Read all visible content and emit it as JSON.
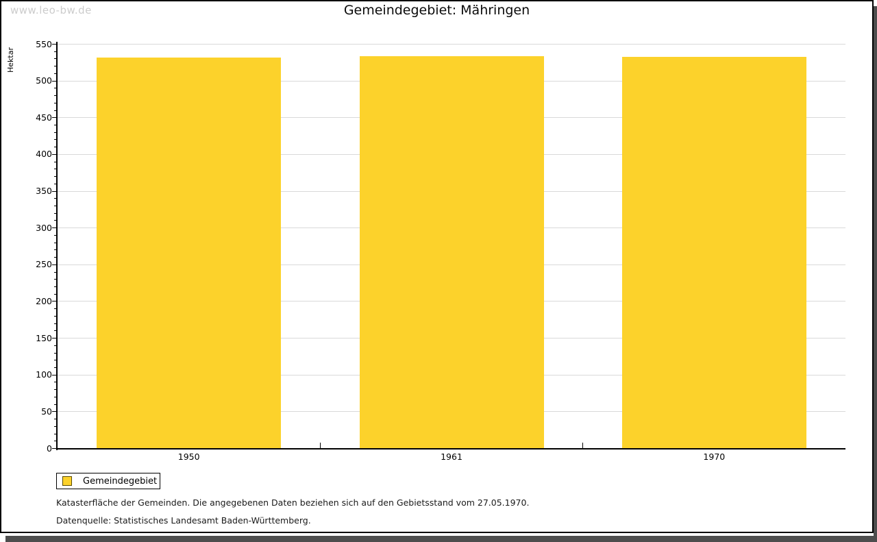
{
  "watermark": "www.leo-bw.de",
  "header": {
    "title": "Gemeindegebiet: Mähringen"
  },
  "y_axis": {
    "label": "Hektar"
  },
  "legend": {
    "label": "Gemeindegebiet",
    "swatch_color": "#FCD22B"
  },
  "footnotes": {
    "line1": "Katasterfläche der Gemeinden. Die angegebenen Daten beziehen sich auf den Gebietsstand vom 27.05.1970.",
    "line2": "Datenquelle: Statistisches Landesamt Baden-Württemberg."
  },
  "colors": {
    "bar": "#FCD22B",
    "grid": "#d9d9d9",
    "axis": "#000000",
    "shadow": "#4d4d4d",
    "watermark": "#cccccc"
  },
  "chart_data": {
    "type": "bar",
    "categories": [
      "1950",
      "1961",
      "1970"
    ],
    "series": [
      {
        "name": "Gemeindegebiet",
        "values": [
          532,
          534,
          533
        ]
      }
    ],
    "title": "Gemeindegebiet: Mähringen",
    "xlabel": "",
    "ylabel": "Hektar",
    "ylim": [
      0,
      550
    ],
    "y_tick_interval": 50,
    "y_minor_tick_interval": 10,
    "grid": true,
    "legend_position": "bottom-left"
  }
}
